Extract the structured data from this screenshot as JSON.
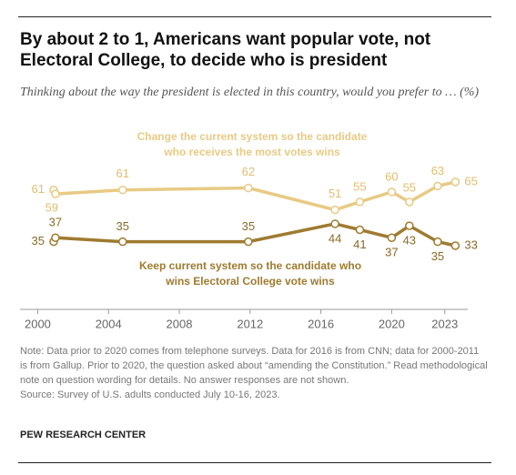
{
  "chart_data": {
    "type": "line",
    "title": "By about 2 to 1, Americans want popular vote, not Electoral College, to decide who is president",
    "subtitle": "Thinking about the way the president is elected in this country, would you prefer to … (%)",
    "xlim": [
      1999,
      2024.3
    ],
    "xticks": [
      2000,
      2004,
      2008,
      2012,
      2016,
      2020,
      2023
    ],
    "series": [
      {
        "name": "Change the current system so the candidate who receives the most votes wins",
        "color": "#e8ca84",
        "x": [
          2000.9,
          2001.0,
          2004.8,
          2011.9,
          2016.8,
          2018.2,
          2020.0,
          2021.0,
          2022.6,
          2023.6
        ],
        "values": [
          61,
          59,
          61,
          62,
          51,
          55,
          60,
          55,
          63,
          65
        ]
      },
      {
        "name": "Keep current system so the candidate who wins Electoral College vote wins",
        "color": "#9e7b30",
        "x": [
          2000.9,
          2001.0,
          2004.8,
          2011.9,
          2016.8,
          2018.2,
          2020.0,
          2021.0,
          2022.6,
          2023.6
        ],
        "values": [
          35,
          37,
          35,
          35,
          44,
          41,
          37,
          43,
          35,
          33
        ]
      }
    ],
    "note": "Note: Data prior to 2020 comes from telephone surveys. Data for 2016 is from CNN; data for 2000-2011 is from Gallup. Prior to 2020, the question asked about “amending the Constitution.” Read methodological note on question wording for details. No answer responses are not shown.",
    "source": "Source: Survey of U.S. adults conducted July 10-16, 2023.",
    "credit": "PEW RESEARCH CENTER"
  }
}
